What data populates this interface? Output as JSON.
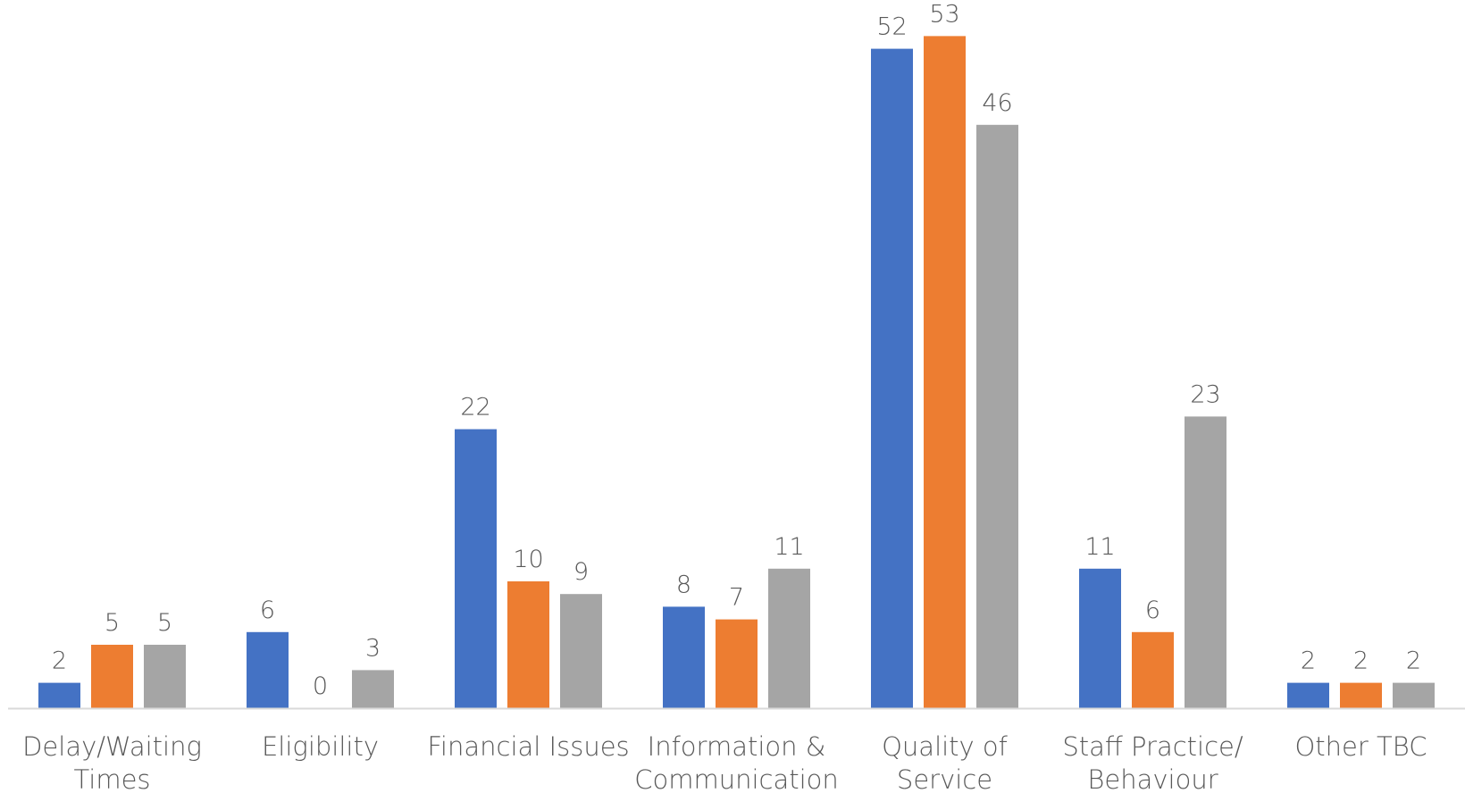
{
  "chart_data": {
    "type": "bar",
    "title": "",
    "xlabel": "",
    "ylabel": "",
    "ylim": [
      0,
      56
    ],
    "grid": false,
    "legend": "none",
    "categories": [
      [
        "Delay/Waiting",
        "Times"
      ],
      [
        "Eligibility"
      ],
      [
        "Financial Issues"
      ],
      [
        "Information &",
        "Communication"
      ],
      [
        "Quality of",
        "Service"
      ],
      [
        "Staff Practice/",
        "Behaviour"
      ],
      [
        "Other TBC"
      ]
    ],
    "series": [
      {
        "color": "#4472C4",
        "values": [
          2,
          6,
          22,
          8,
          52,
          11,
          2
        ]
      },
      {
        "color": "#ED7D31",
        "values": [
          5,
          0,
          10,
          7,
          53,
          6,
          2
        ]
      },
      {
        "color": "#A5A5A5",
        "values": [
          5,
          3,
          9,
          11,
          46,
          23,
          2
        ]
      }
    ],
    "axis_color": "#D9D9D9"
  }
}
